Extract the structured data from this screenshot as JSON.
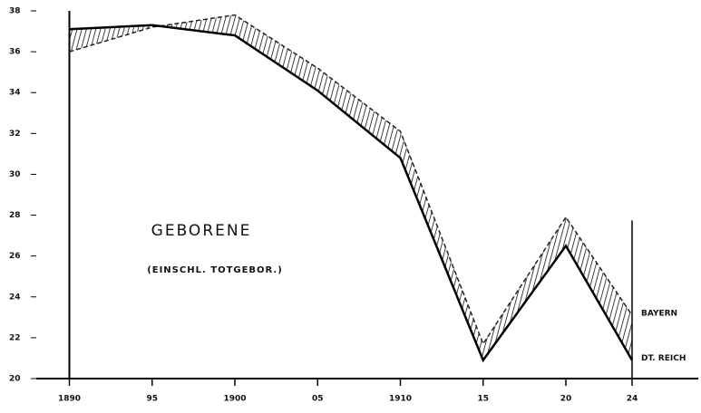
{
  "chart_data": {
    "type": "line",
    "title": "GEBORENE",
    "subtitle": "(EINSCHL. TOTGEBOR.)",
    "x": [
      1890,
      1895,
      1900,
      1905,
      1910,
      1915,
      1920,
      1924
    ],
    "series": [
      {
        "name": "BAYERN",
        "color": "#222222",
        "dash": true,
        "values": [
          36.0,
          37.2,
          37.8,
          35.2,
          32.1,
          21.7,
          27.9,
          23.1
        ]
      },
      {
        "name": "DT. REICH",
        "color": "#000000",
        "dash": false,
        "values": [
          37.1,
          37.3,
          36.8,
          34.1,
          30.8,
          20.9,
          26.5,
          20.9
        ]
      }
    ],
    "xlim": [
      1888,
      1928
    ],
    "xticks": [
      {
        "value": 1890,
        "label": "1890"
      },
      {
        "value": 1895,
        "label": "95"
      },
      {
        "value": 1900,
        "label": "1900"
      },
      {
        "value": 1905,
        "label": "05"
      },
      {
        "value": 1910,
        "label": "1910"
      },
      {
        "value": 1915,
        "label": "15"
      },
      {
        "value": 1920,
        "label": "20"
      },
      {
        "value": 1924,
        "label": "24"
      }
    ],
    "ylim": [
      20,
      38
    ],
    "yticks": [
      20,
      22,
      24,
      26,
      28,
      30,
      32,
      34,
      36,
      38
    ],
    "grid": false
  }
}
